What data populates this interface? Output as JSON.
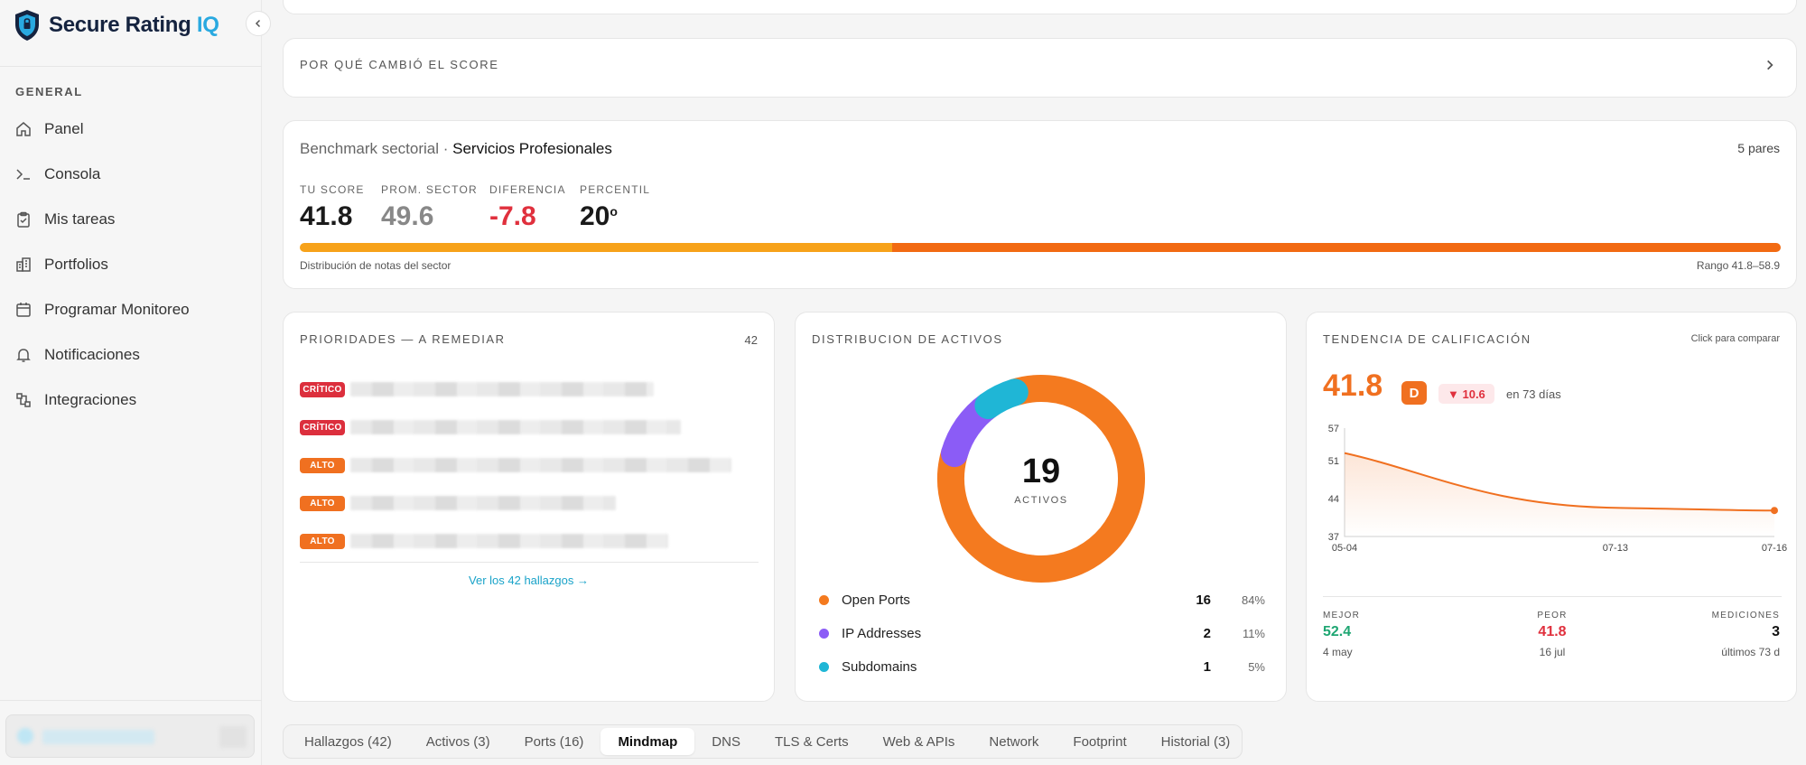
{
  "brand": {
    "name": "Secure Rating ",
    "name_accent": "IQ"
  },
  "sidebar": {
    "section_label": "GENERAL",
    "items": [
      {
        "label": "Panel",
        "icon": "home-icon"
      },
      {
        "label": "Consola",
        "icon": "terminal-icon"
      },
      {
        "label": "Mis tareas",
        "icon": "clipboard-icon"
      },
      {
        "label": "Portfolios",
        "icon": "building-icon"
      },
      {
        "label": "Programar Monitoreo",
        "icon": "calendar-icon"
      },
      {
        "label": "Notificaciones",
        "icon": "bell-icon"
      },
      {
        "label": "Integraciones",
        "icon": "integrations-icon"
      }
    ]
  },
  "why": {
    "label": "POR QUÉ CAMBIÓ EL SCORE"
  },
  "benchmark": {
    "title": "Benchmark sectorial · ",
    "sector": "Servicios Profesionales",
    "peers": "5 pares",
    "stats": [
      {
        "label": "TU SCORE",
        "value": "41.8"
      },
      {
        "label": "PROM. SECTOR",
        "value": "49.6"
      },
      {
        "label": "DIFERENCIA",
        "value": "-7.8"
      },
      {
        "label": "PERCENTIL",
        "value": "20",
        "suffix": "o"
      }
    ],
    "distribution_label": "Distribución de notas del sector",
    "range_label": "Rango 41.8–58.9"
  },
  "priorities": {
    "title": "PRIORIDADES — A REMEDIAR",
    "count": "42",
    "rows": [
      {
        "severity": "CRÍTICO",
        "kind": "crit"
      },
      {
        "severity": "CRÍTICO",
        "kind": "crit"
      },
      {
        "severity": "ALTO",
        "kind": "alto"
      },
      {
        "severity": "ALTO",
        "kind": "alto"
      },
      {
        "severity": "ALTO",
        "kind": "alto"
      }
    ],
    "more_link": "Ver los 42 hallazgos →"
  },
  "assets": {
    "title": "DISTRIBUCION DE ACTIVOS",
    "total": "19",
    "total_label": "ACTIVOS",
    "items": [
      {
        "name": "Open Ports",
        "count": "16",
        "pct": "84%",
        "color": "#f47a1f"
      },
      {
        "name": "IP Addresses",
        "count": "2",
        "pct": "11%",
        "color": "#8b5cf6"
      },
      {
        "name": "Subdomains",
        "count": "1",
        "pct": "5%",
        "color": "#1fb6d6"
      }
    ]
  },
  "trend": {
    "title": "TENDENCIA DE CALIFICACIÓN",
    "hint": "Click para comparar",
    "score": "41.8",
    "grade": "D",
    "delta": "▼ 10.6",
    "period": "en 73 días",
    "chart_data": {
      "type": "area",
      "x": [
        "05-04",
        "07-13",
        "07-16"
      ],
      "y_ticks": [
        37,
        44,
        51,
        57
      ],
      "ylim": [
        37,
        57
      ],
      "values": [
        52.4,
        42.3,
        41.8
      ],
      "color": "#f07020"
    },
    "stats": [
      {
        "label": "MEJOR",
        "value": "52.4",
        "sub": "4 may",
        "color": "#1ea672"
      },
      {
        "label": "PEOR",
        "value": "41.8",
        "sub": "16 jul",
        "color": "#e0303d"
      },
      {
        "label": "MEDICIONES",
        "value": "3",
        "sub": "últimos 73 d",
        "color": "#111111"
      }
    ]
  },
  "tabs": [
    {
      "label": "Hallazgos (42)",
      "active": false
    },
    {
      "label": "Activos (3)",
      "active": false
    },
    {
      "label": "Ports (16)",
      "active": false
    },
    {
      "label": "Mindmap",
      "active": true
    },
    {
      "label": "DNS",
      "active": false
    },
    {
      "label": "TLS & Certs",
      "active": false
    },
    {
      "label": "Web & APIs",
      "active": false
    },
    {
      "label": "Network",
      "active": false
    },
    {
      "label": "Footprint",
      "active": false
    },
    {
      "label": "Historial (3)",
      "active": false
    }
  ]
}
